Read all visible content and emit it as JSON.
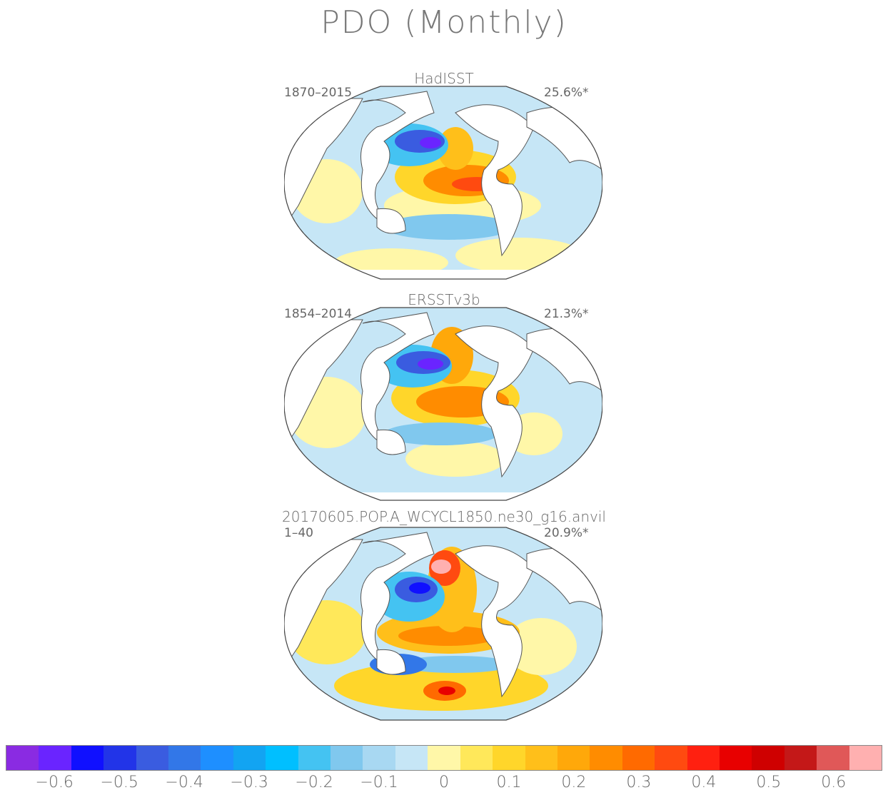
{
  "title": "PDO (Monthly)",
  "panels": [
    {
      "name": "HadISST",
      "period": "1870–2015",
      "variance": "25.6%*"
    },
    {
      "name": "ERSSTv3b",
      "period": "1854–2014",
      "variance": "21.3%*"
    },
    {
      "name": "20170605.POP.A_WCYCL1850.ne30_g16.anvil",
      "period": "1–40",
      "variance": "20.9%*"
    }
  ],
  "colorbar": {
    "colors": [
      "#8a2be2",
      "#6a24ff",
      "#1010ff",
      "#2234e8",
      "#3a5ce0",
      "#3277e8",
      "#1e8fff",
      "#12a4f2",
      "#00bfff",
      "#44c3f2",
      "#80c8ee",
      "#a8d8f2",
      "#c6e6f6",
      "#fff7a8",
      "#ffe85a",
      "#ffd62a",
      "#ffbf1a",
      "#ffa80a",
      "#ff8c00",
      "#ff6a00",
      "#ff4a10",
      "#ff2010",
      "#e80000",
      "#cf0000",
      "#c41818",
      "#e05858",
      "#ffb0b0"
    ],
    "labels": [
      "−0.6",
      "−0.5",
      "−0.4",
      "−0.3",
      "−0.2",
      "−0.1",
      "0",
      "0.1",
      "0.2",
      "0.3",
      "0.4",
      "0.5",
      "0.6"
    ]
  }
}
